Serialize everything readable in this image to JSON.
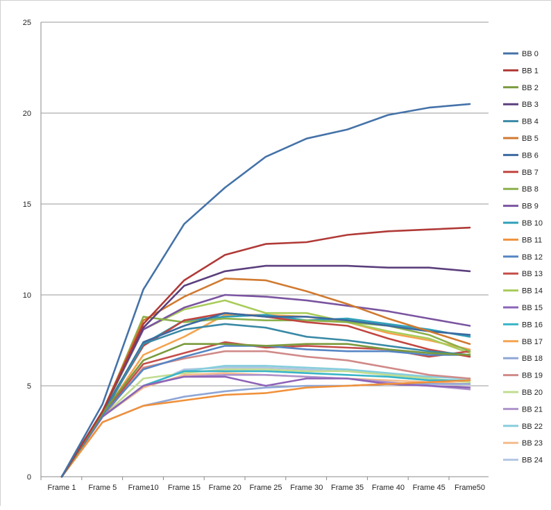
{
  "chart_data": {
    "type": "line",
    "title": "",
    "xlabel": "",
    "ylabel": "",
    "categories": [
      "Frame 1",
      "Frame 5",
      "Frame10",
      "Frame 15",
      "Frame 20",
      "Frame 25",
      "Frame 30",
      "Frame 35",
      "Frame 40",
      "Frame 45",
      "Frame50"
    ],
    "ylim": [
      0,
      25
    ],
    "yticks": [
      0,
      5,
      10,
      15,
      20,
      25
    ],
    "grid": true,
    "legend_position": "right",
    "series": [
      {
        "name": "BB 0",
        "color": "#4472a8",
        "values": [
          0,
          4.0,
          10.3,
          13.9,
          15.9,
          17.6,
          18.6,
          19.1,
          19.9,
          20.3,
          20.5
        ]
      },
      {
        "name": "BB 1",
        "color": "#b03a37",
        "values": [
          0,
          3.6,
          8.4,
          10.8,
          12.2,
          12.8,
          12.9,
          13.3,
          13.5,
          13.6,
          13.7
        ]
      },
      {
        "name": "BB 2",
        "color": "#7a9a3c",
        "values": [
          0,
          3.5,
          6.4,
          7.3,
          7.3,
          7.2,
          7.3,
          7.3,
          7.0,
          6.8,
          6.7
        ]
      },
      {
        "name": "BB 3",
        "color": "#5b3f7d",
        "values": [
          0,
          3.6,
          8.2,
          10.5,
          11.3,
          11.6,
          11.6,
          11.6,
          11.5,
          11.5,
          11.3
        ]
      },
      {
        "name": "BB 4",
        "color": "#3a8aa6",
        "values": [
          0,
          3.4,
          7.3,
          8.1,
          8.4,
          8.2,
          7.7,
          7.5,
          7.2,
          6.9,
          6.7
        ]
      },
      {
        "name": "BB 5",
        "color": "#d07a30",
        "values": [
          0,
          3.6,
          8.6,
          9.9,
          10.9,
          10.8,
          10.2,
          9.5,
          8.7,
          8.0,
          7.3
        ]
      },
      {
        "name": "BB 6",
        "color": "#3c69a0",
        "values": [
          0,
          3.5,
          7.4,
          8.3,
          9.0,
          8.8,
          8.8,
          8.6,
          8.3,
          8.0,
          7.8
        ]
      },
      {
        "name": "BB 7",
        "color": "#c1453f",
        "values": [
          0,
          3.5,
          7.2,
          8.6,
          9.0,
          8.8,
          8.5,
          8.3,
          7.6,
          7.0,
          6.6
        ]
      },
      {
        "name": "BB 8",
        "color": "#8bb04a",
        "values": [
          0,
          3.5,
          8.8,
          8.5,
          8.7,
          8.6,
          8.6,
          8.5,
          8.3,
          7.8,
          6.9
        ]
      },
      {
        "name": "BB 9",
        "color": "#7a54a0",
        "values": [
          0,
          3.6,
          8.1,
          9.3,
          10.0,
          9.9,
          9.7,
          9.4,
          9.1,
          8.7,
          8.3
        ]
      },
      {
        "name": "BB 10",
        "color": "#2ea0b8",
        "values": [
          0,
          3.4,
          7.3,
          8.6,
          8.8,
          8.9,
          8.6,
          8.7,
          8.4,
          8.1,
          7.7
        ]
      },
      {
        "name": "BB 11",
        "color": "#f0913a",
        "values": [
          0,
          3.0,
          3.9,
          4.2,
          4.5,
          4.6,
          4.9,
          5.0,
          5.1,
          5.2,
          5.3
        ]
      },
      {
        "name": "BB 12",
        "color": "#5585c4",
        "values": [
          0,
          3.4,
          5.9,
          6.6,
          7.2,
          7.2,
          7.0,
          6.9,
          6.9,
          6.7,
          6.7
        ]
      },
      {
        "name": "BB 13",
        "color": "#c44e4a",
        "values": [
          0,
          3.4,
          6.2,
          6.8,
          7.4,
          7.1,
          7.2,
          7.1,
          7.0,
          6.6,
          6.9
        ]
      },
      {
        "name": "BB 14",
        "color": "#a8cc5a",
        "values": [
          0,
          3.5,
          8.1,
          9.2,
          9.7,
          9.0,
          9.0,
          8.5,
          8.0,
          7.6,
          6.8
        ]
      },
      {
        "name": "BB 15",
        "color": "#8d63b8",
        "values": [
          0,
          3.3,
          5.0,
          5.5,
          5.5,
          5.0,
          5.4,
          5.4,
          5.1,
          5.0,
          4.9
        ]
      },
      {
        "name": "BB 16",
        "color": "#38b4c8",
        "values": [
          0,
          3.3,
          5.0,
          5.8,
          5.8,
          5.8,
          5.7,
          5.6,
          5.5,
          5.3,
          5.3
        ]
      },
      {
        "name": "BB 17",
        "color": "#f4a450",
        "values": [
          0,
          3.4,
          6.7,
          7.7,
          8.9,
          8.9,
          8.8,
          8.5,
          7.9,
          7.5,
          7.0
        ]
      },
      {
        "name": "BB 18",
        "color": "#8ea6d6",
        "values": [
          0,
          3.0,
          3.9,
          4.4,
          4.7,
          4.9,
          5.0,
          5.0,
          5.1,
          5.1,
          5.1
        ]
      },
      {
        "name": "BB 19",
        "color": "#d08a88",
        "values": [
          0,
          3.3,
          6.0,
          6.5,
          6.9,
          6.9,
          6.6,
          6.4,
          6.0,
          5.6,
          5.4
        ]
      },
      {
        "name": "BB 20",
        "color": "#c0dc90",
        "values": [
          0,
          3.3,
          5.4,
          5.7,
          5.9,
          5.9,
          5.8,
          5.8,
          5.6,
          5.4,
          5.2
        ]
      },
      {
        "name": "BB 21",
        "color": "#ad93cc",
        "values": [
          0,
          3.3,
          5.0,
          5.5,
          5.6,
          5.6,
          5.5,
          5.4,
          5.2,
          5.0,
          4.8
        ]
      },
      {
        "name": "BB 22",
        "color": "#86cedc",
        "values": [
          0,
          3.3,
          5.0,
          5.8,
          6.1,
          6.1,
          6.0,
          5.9,
          5.7,
          5.5,
          5.4
        ]
      },
      {
        "name": "BB 23",
        "color": "#f4bc8c",
        "values": [
          0,
          3.3,
          4.9,
          5.6,
          5.7,
          5.6,
          5.5,
          5.4,
          5.3,
          5.2,
          5.1
        ]
      },
      {
        "name": "BB 24",
        "color": "#b3c6e2",
        "values": [
          0,
          3.3,
          4.9,
          5.9,
          6.0,
          6.0,
          5.9,
          5.8,
          5.6,
          5.5,
          5.4
        ]
      }
    ]
  }
}
